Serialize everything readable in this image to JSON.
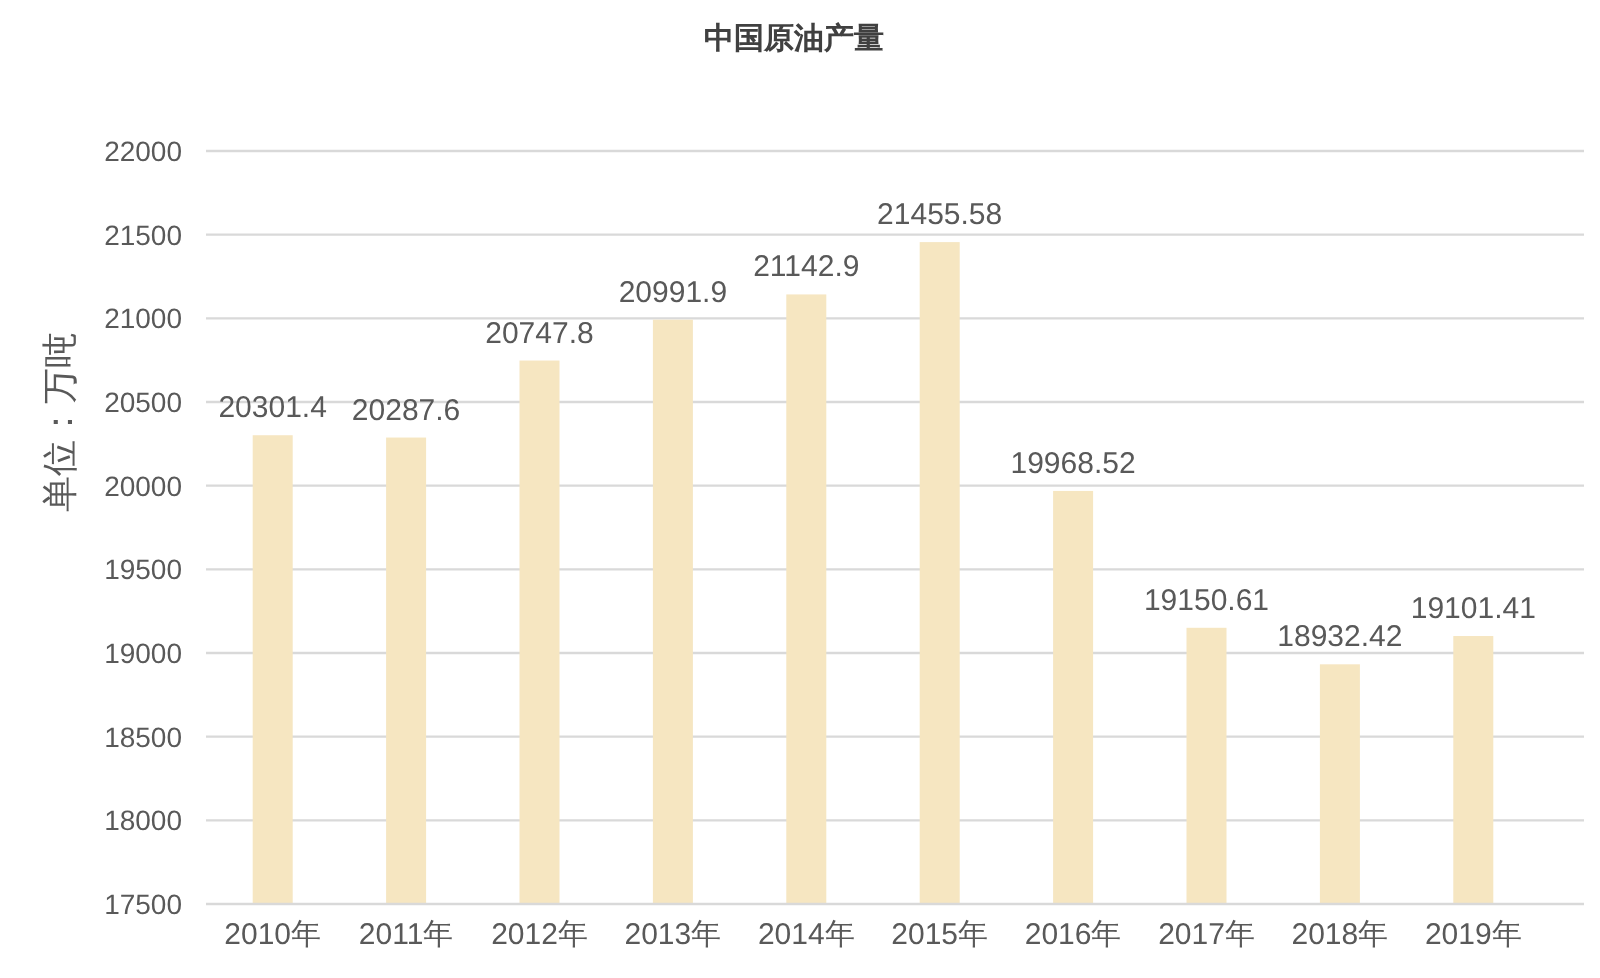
{
  "chart_data": {
    "type": "bar",
    "title": "中国原油产量",
    "ylabel": "单位：万吨",
    "categories": [
      "2010年",
      "2011年",
      "2012年",
      "2013年",
      "2014年",
      "2015年",
      "2016年",
      "2017年",
      "2018年",
      "2019年"
    ],
    "values": [
      20301.4,
      20287.6,
      20747.8,
      20991.9,
      21142.9,
      21455.58,
      19968.52,
      19150.61,
      18932.42,
      19101.41
    ],
    "color": "#f6e6c1",
    "ylim": [
      17500,
      22000
    ],
    "yticks": [
      17500,
      18000,
      18500,
      19000,
      19500,
      20000,
      20500,
      21000,
      21500,
      22000
    ],
    "grid": "y",
    "data_labels": true
  }
}
